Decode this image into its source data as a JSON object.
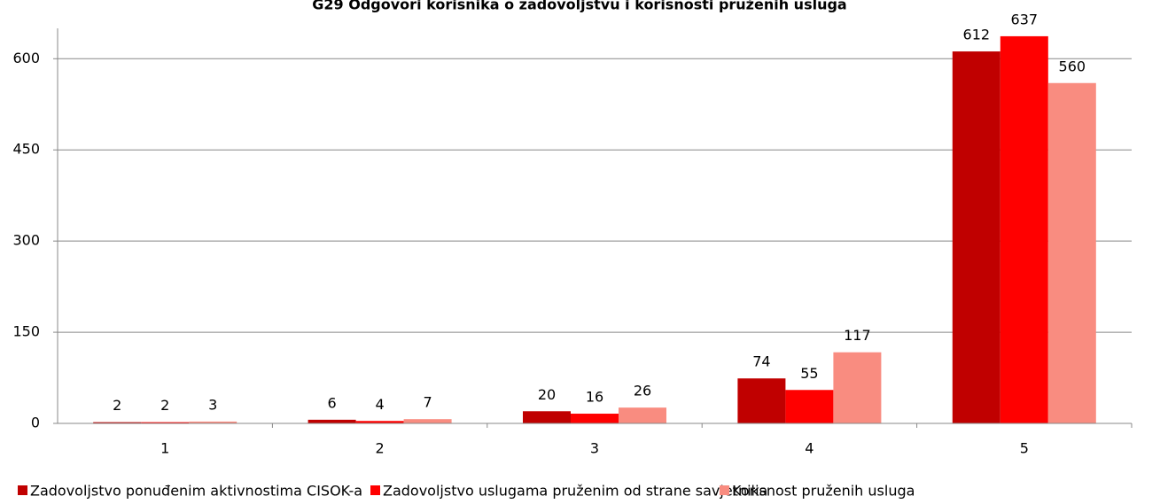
{
  "chart_data": {
    "type": "bar",
    "title": "G29 Odgovori korisnika o zadovoljstvu i korisnosti pruženih usluga",
    "categories": [
      "1",
      "2",
      "3",
      "4",
      "5"
    ],
    "series": [
      {
        "name": "Zadovoljstvo ponuđenim aktivnostima CISOK-a",
        "color": "#c00000",
        "values": [
          2,
          6,
          20,
          74,
          612
        ]
      },
      {
        "name": "Zadovoljstvo uslugama pruženim od strane savjetnika",
        "color": "#ff0000",
        "values": [
          2,
          4,
          16,
          55,
          637
        ]
      },
      {
        "name": "Korisnost pruženih usluga",
        "color": "#f98c80",
        "values": [
          3,
          7,
          26,
          117,
          560
        ]
      }
    ],
    "ylim": [
      0,
      650
    ],
    "yticks": [
      0,
      150,
      300,
      450,
      600
    ],
    "grid": true,
    "legend": "bottom"
  }
}
